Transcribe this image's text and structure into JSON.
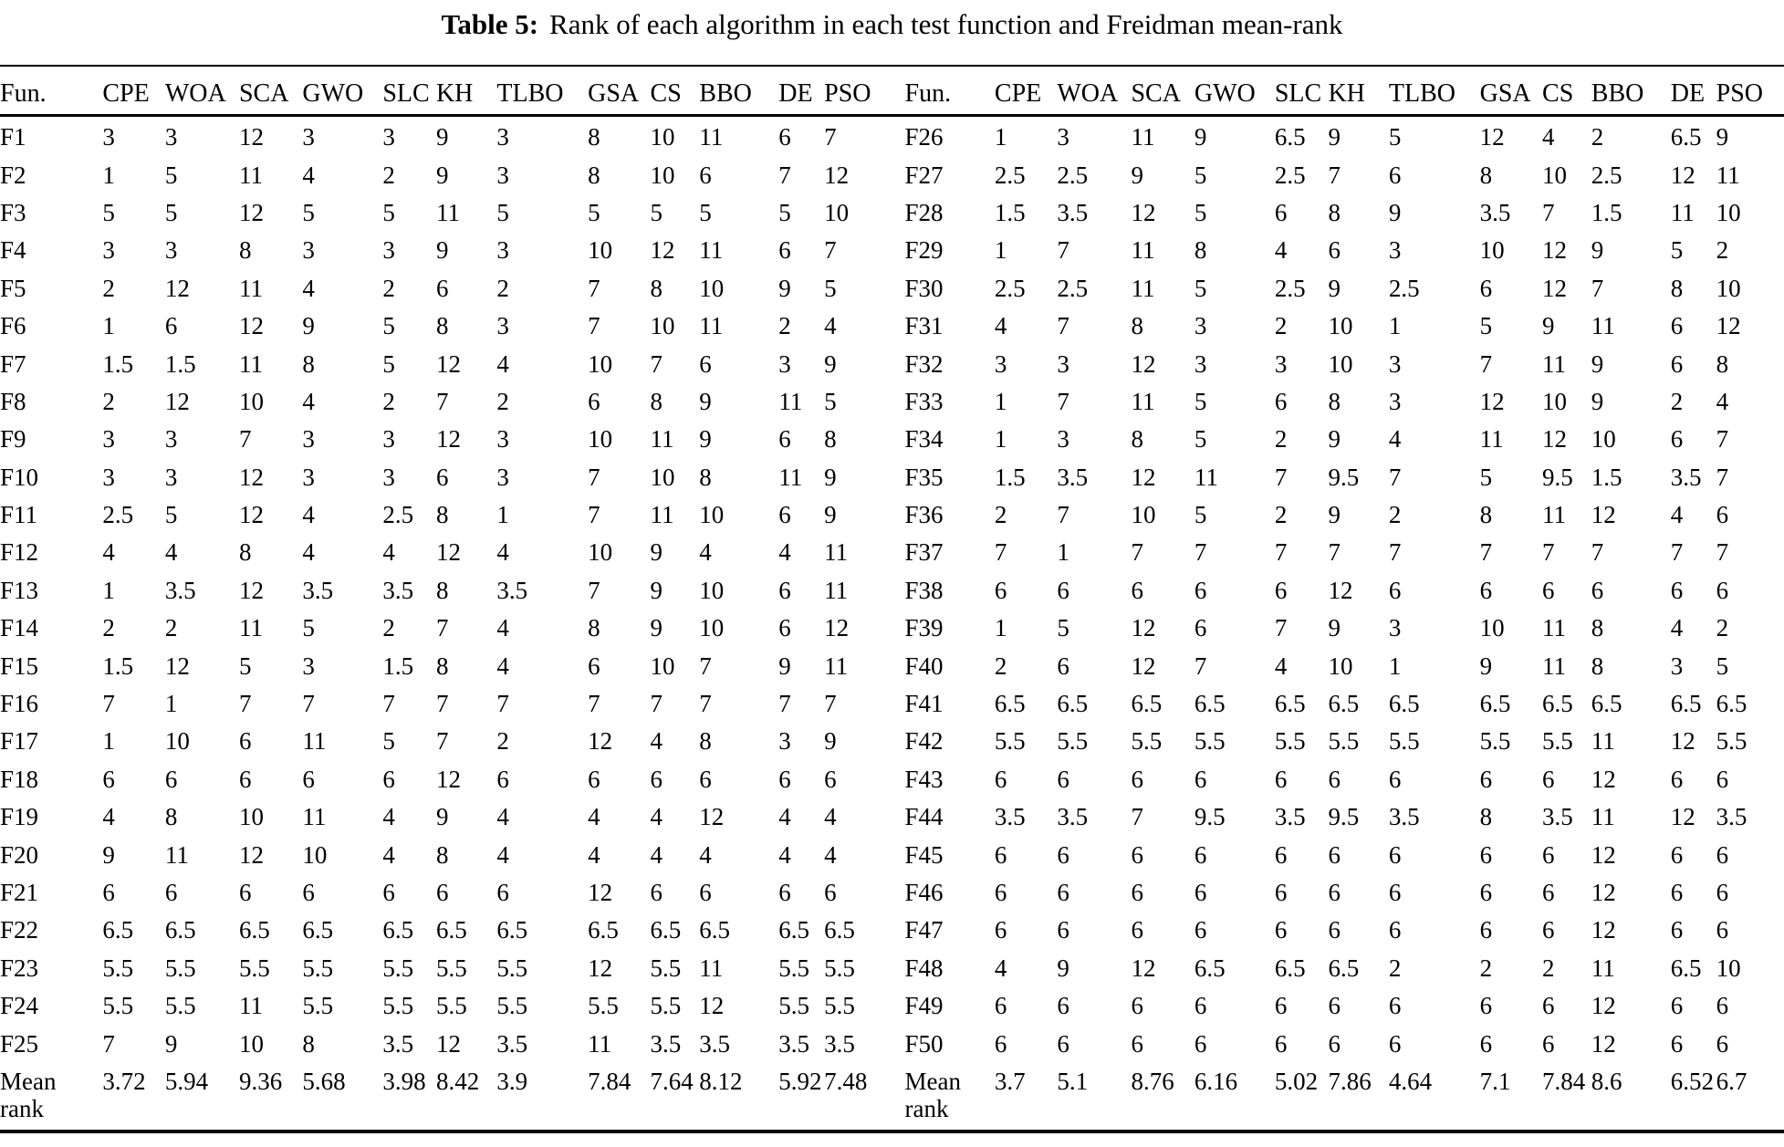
{
  "title": {
    "label": "Table 5:",
    "text": "Rank of each algorithm in each test function and Freidman mean-rank"
  },
  "table": {
    "columns": [
      "Fun.",
      "CPE",
      "WOA",
      "SCA",
      "GWO",
      "SLC",
      "KH",
      "TLBO",
      "GSA",
      "CS",
      "BBO",
      "DE",
      "PSO"
    ],
    "left": {
      "rows": [
        {
          "fun": "F1",
          "values": [
            "3",
            "3",
            "12",
            "3",
            "3",
            "9",
            "3",
            "8",
            "10",
            "11",
            "6",
            "7"
          ]
        },
        {
          "fun": "F2",
          "values": [
            "1",
            "5",
            "11",
            "4",
            "2",
            "9",
            "3",
            "8",
            "10",
            "6",
            "7",
            "12"
          ]
        },
        {
          "fun": "F3",
          "values": [
            "5",
            "5",
            "12",
            "5",
            "5",
            "11",
            "5",
            "5",
            "5",
            "5",
            "5",
            "10"
          ]
        },
        {
          "fun": "F4",
          "values": [
            "3",
            "3",
            "8",
            "3",
            "3",
            "9",
            "3",
            "10",
            "12",
            "11",
            "6",
            "7"
          ]
        },
        {
          "fun": "F5",
          "values": [
            "2",
            "12",
            "11",
            "4",
            "2",
            "6",
            "2",
            "7",
            "8",
            "10",
            "9",
            "5"
          ]
        },
        {
          "fun": "F6",
          "values": [
            "1",
            "6",
            "12",
            "9",
            "5",
            "8",
            "3",
            "7",
            "10",
            "11",
            "2",
            "4"
          ]
        },
        {
          "fun": "F7",
          "values": [
            "1.5",
            "1.5",
            "11",
            "8",
            "5",
            "12",
            "4",
            "10",
            "7",
            "6",
            "3",
            "9"
          ]
        },
        {
          "fun": "F8",
          "values": [
            "2",
            "12",
            "10",
            "4",
            "2",
            "7",
            "2",
            "6",
            "8",
            "9",
            "11",
            "5"
          ]
        },
        {
          "fun": "F9",
          "values": [
            "3",
            "3",
            "7",
            "3",
            "3",
            "12",
            "3",
            "10",
            "11",
            "9",
            "6",
            "8"
          ]
        },
        {
          "fun": "F10",
          "values": [
            "3",
            "3",
            "12",
            "3",
            "3",
            "6",
            "3",
            "7",
            "10",
            "8",
            "11",
            "9"
          ]
        },
        {
          "fun": "F11",
          "values": [
            "2.5",
            "5",
            "12",
            "4",
            "2.5",
            "8",
            "1",
            "7",
            "11",
            "10",
            "6",
            "9"
          ]
        },
        {
          "fun": "F12",
          "values": [
            "4",
            "4",
            "8",
            "4",
            "4",
            "12",
            "4",
            "10",
            "9",
            "4",
            "4",
            "11"
          ]
        },
        {
          "fun": "F13",
          "values": [
            "1",
            "3.5",
            "12",
            "3.5",
            "3.5",
            "8",
            "3.5",
            "7",
            "9",
            "10",
            "6",
            "11"
          ]
        },
        {
          "fun": "F14",
          "values": [
            "2",
            "2",
            "11",
            "5",
            "2",
            "7",
            "4",
            "8",
            "9",
            "10",
            "6",
            "12"
          ]
        },
        {
          "fun": "F15",
          "values": [
            "1.5",
            "12",
            "5",
            "3",
            "1.5",
            "8",
            "4",
            "6",
            "10",
            "7",
            "9",
            "11"
          ]
        },
        {
          "fun": "F16",
          "values": [
            "7",
            "1",
            "7",
            "7",
            "7",
            "7",
            "7",
            "7",
            "7",
            "7",
            "7",
            "7"
          ]
        },
        {
          "fun": "F17",
          "values": [
            "1",
            "10",
            "6",
            "11",
            "5",
            "7",
            "2",
            "12",
            "4",
            "8",
            "3",
            "9"
          ]
        },
        {
          "fun": "F18",
          "values": [
            "6",
            "6",
            "6",
            "6",
            "6",
            "12",
            "6",
            "6",
            "6",
            "6",
            "6",
            "6"
          ]
        },
        {
          "fun": "F19",
          "values": [
            "4",
            "8",
            "10",
            "11",
            "4",
            "9",
            "4",
            "4",
            "4",
            "12",
            "4",
            "4"
          ]
        },
        {
          "fun": "F20",
          "values": [
            "9",
            "11",
            "12",
            "10",
            "4",
            "8",
            "4",
            "4",
            "4",
            "4",
            "4",
            "4"
          ]
        },
        {
          "fun": "F21",
          "values": [
            "6",
            "6",
            "6",
            "6",
            "6",
            "6",
            "6",
            "12",
            "6",
            "6",
            "6",
            "6"
          ]
        },
        {
          "fun": "F22",
          "values": [
            "6.5",
            "6.5",
            "6.5",
            "6.5",
            "6.5",
            "6.5",
            "6.5",
            "6.5",
            "6.5",
            "6.5",
            "6.5",
            "6.5"
          ]
        },
        {
          "fun": "F23",
          "values": [
            "5.5",
            "5.5",
            "5.5",
            "5.5",
            "5.5",
            "5.5",
            "5.5",
            "12",
            "5.5",
            "11",
            "5.5",
            "5.5"
          ]
        },
        {
          "fun": "F24",
          "values": [
            "5.5",
            "5.5",
            "11",
            "5.5",
            "5.5",
            "5.5",
            "5.5",
            "5.5",
            "5.5",
            "12",
            "5.5",
            "5.5"
          ]
        },
        {
          "fun": "F25",
          "values": [
            "7",
            "9",
            "10",
            "8",
            "3.5",
            "12",
            "3.5",
            "11",
            "3.5",
            "3.5",
            "3.5",
            "3.5"
          ]
        }
      ],
      "mean": {
        "label": "Mean rank",
        "values": [
          "3.72",
          "5.94",
          "9.36",
          "5.68",
          "3.98",
          "8.42",
          "3.9",
          "7.84",
          "7.64",
          "8.12",
          "5.92",
          "7.48"
        ]
      }
    },
    "right": {
      "rows": [
        {
          "fun": "F26",
          "values": [
            "1",
            "3",
            "11",
            "9",
            "6.5",
            "9",
            "5",
            "12",
            "4",
            "2",
            "6.5",
            "9"
          ]
        },
        {
          "fun": "F27",
          "values": [
            "2.5",
            "2.5",
            "9",
            "5",
            "2.5",
            "7",
            "6",
            "8",
            "10",
            "2.5",
            "12",
            "11"
          ]
        },
        {
          "fun": "F28",
          "values": [
            "1.5",
            "3.5",
            "12",
            "5",
            "6",
            "8",
            "9",
            "3.5",
            "7",
            "1.5",
            "11",
            "10"
          ]
        },
        {
          "fun": "F29",
          "values": [
            "1",
            "7",
            "11",
            "8",
            "4",
            "6",
            "3",
            "10",
            "12",
            "9",
            "5",
            "2"
          ]
        },
        {
          "fun": "F30",
          "values": [
            "2.5",
            "2.5",
            "11",
            "5",
            "2.5",
            "9",
            "2.5",
            "6",
            "12",
            "7",
            "8",
            "10"
          ]
        },
        {
          "fun": "F31",
          "values": [
            "4",
            "7",
            "8",
            "3",
            "2",
            "10",
            "1",
            "5",
            "9",
            "11",
            "6",
            "12"
          ]
        },
        {
          "fun": "F32",
          "values": [
            "3",
            "3",
            "12",
            "3",
            "3",
            "10",
            "3",
            "7",
            "11",
            "9",
            "6",
            "8"
          ]
        },
        {
          "fun": "F33",
          "values": [
            "1",
            "7",
            "11",
            "5",
            "6",
            "8",
            "3",
            "12",
            "10",
            "9",
            "2",
            "4"
          ]
        },
        {
          "fun": "F34",
          "values": [
            "1",
            "3",
            "8",
            "5",
            "2",
            "9",
            "4",
            "11",
            "12",
            "10",
            "6",
            "7"
          ]
        },
        {
          "fun": "F35",
          "values": [
            "1.5",
            "3.5",
            "12",
            "11",
            "7",
            "9.5",
            "7",
            "5",
            "9.5",
            "1.5",
            "3.5",
            "7"
          ]
        },
        {
          "fun": "F36",
          "values": [
            "2",
            "7",
            "10",
            "5",
            "2",
            "9",
            "2",
            "8",
            "11",
            "12",
            "4",
            "6"
          ]
        },
        {
          "fun": "F37",
          "values": [
            "7",
            "1",
            "7",
            "7",
            "7",
            "7",
            "7",
            "7",
            "7",
            "7",
            "7",
            "7"
          ]
        },
        {
          "fun": "F38",
          "values": [
            "6",
            "6",
            "6",
            "6",
            "6",
            "12",
            "6",
            "6",
            "6",
            "6",
            "6",
            "6"
          ]
        },
        {
          "fun": "F39",
          "values": [
            "1",
            "5",
            "12",
            "6",
            "7",
            "9",
            "3",
            "10",
            "11",
            "8",
            "4",
            "2"
          ]
        },
        {
          "fun": "F40",
          "values": [
            "2",
            "6",
            "12",
            "7",
            "4",
            "10",
            "1",
            "9",
            "11",
            "8",
            "3",
            "5"
          ]
        },
        {
          "fun": "F41",
          "values": [
            "6.5",
            "6.5",
            "6.5",
            "6.5",
            "6.5",
            "6.5",
            "6.5",
            "6.5",
            "6.5",
            "6.5",
            "6.5",
            "6.5"
          ]
        },
        {
          "fun": "F42",
          "values": [
            "5.5",
            "5.5",
            "5.5",
            "5.5",
            "5.5",
            "5.5",
            "5.5",
            "5.5",
            "5.5",
            "11",
            "12",
            "5.5"
          ]
        },
        {
          "fun": "F43",
          "values": [
            "6",
            "6",
            "6",
            "6",
            "6",
            "6",
            "6",
            "6",
            "6",
            "12",
            "6",
            "6"
          ]
        },
        {
          "fun": "F44",
          "values": [
            "3.5",
            "3.5",
            "7",
            "9.5",
            "3.5",
            "9.5",
            "3.5",
            "8",
            "3.5",
            "11",
            "12",
            "3.5"
          ]
        },
        {
          "fun": "F45",
          "values": [
            "6",
            "6",
            "6",
            "6",
            "6",
            "6",
            "6",
            "6",
            "6",
            "12",
            "6",
            "6"
          ]
        },
        {
          "fun": "F46",
          "values": [
            "6",
            "6",
            "6",
            "6",
            "6",
            "6",
            "6",
            "6",
            "6",
            "12",
            "6",
            "6"
          ]
        },
        {
          "fun": "F47",
          "values": [
            "6",
            "6",
            "6",
            "6",
            "6",
            "6",
            "6",
            "6",
            "6",
            "12",
            "6",
            "6"
          ]
        },
        {
          "fun": "F48",
          "values": [
            "4",
            "9",
            "12",
            "6.5",
            "6.5",
            "6.5",
            "2",
            "2",
            "2",
            "11",
            "6.5",
            "10"
          ]
        },
        {
          "fun": "F49",
          "values": [
            "6",
            "6",
            "6",
            "6",
            "6",
            "6",
            "6",
            "6",
            "6",
            "12",
            "6",
            "6"
          ]
        },
        {
          "fun": "F50",
          "values": [
            "6",
            "6",
            "6",
            "6",
            "6",
            "6",
            "6",
            "6",
            "6",
            "12",
            "6",
            "6"
          ]
        }
      ],
      "mean": {
        "label": "Mean rank",
        "values": [
          "3.7",
          "5.1",
          "8.76",
          "6.16",
          "5.02",
          "7.86",
          "4.64",
          "7.1",
          "7.84",
          "8.6",
          "6.52",
          "6.7"
        ]
      }
    }
  }
}
